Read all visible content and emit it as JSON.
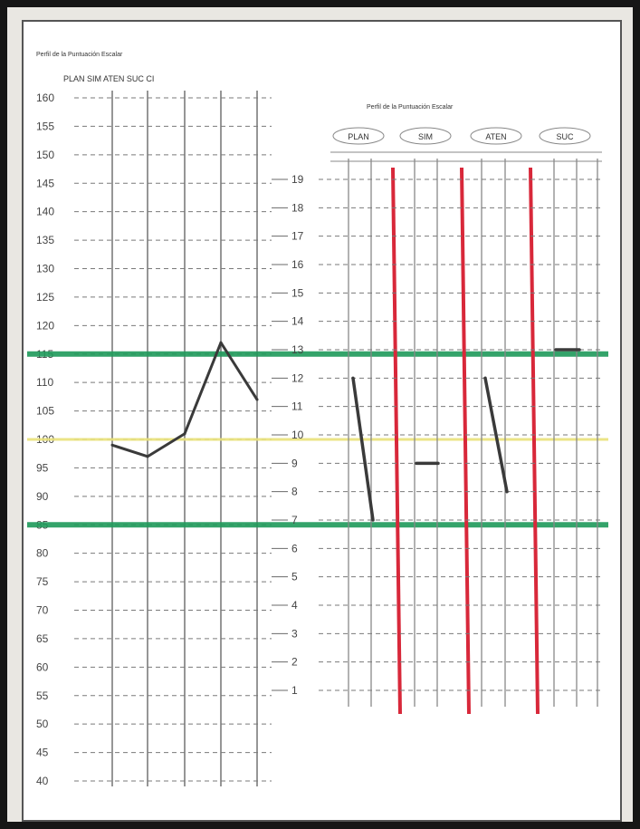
{
  "chart_data": [
    {
      "type": "line",
      "title": "Perfil de la Puntuación Escalar",
      "subtitle": "PLAN  SIM  ATEN  SUC  CI",
      "categories": [
        "PLAN",
        "SIM",
        "ATEN",
        "SUC",
        "CI"
      ],
      "ylim": [
        40,
        160
      ],
      "yticks": [
        160,
        155,
        150,
        145,
        140,
        135,
        130,
        125,
        120,
        115,
        110,
        105,
        100,
        95,
        90,
        85,
        80,
        75,
        70,
        65,
        60,
        55,
        50,
        45,
        40
      ],
      "series": [
        {
          "values": [
            99,
            97,
            101,
            117,
            107
          ]
        }
      ],
      "reference_lines": [
        {
          "y": 115,
          "color": "#1f9a5a"
        },
        {
          "y": 100,
          "color": "#e9e27a"
        },
        {
          "y": 85,
          "color": "#1f9a5a"
        }
      ],
      "grid": true
    },
    {
      "type": "line",
      "title": "Perfil de la Puntuación Escalar",
      "groups": [
        "PLAN",
        "SIM",
        "ATEN",
        "SUC"
      ],
      "subtests": [
        "",
        "",
        "",
        "",
        "",
        "",
        "",
        "",
        "",
        "",
        "",
        ""
      ],
      "ylim": [
        1,
        19
      ],
      "yticks": [
        19,
        18,
        17,
        16,
        15,
        14,
        13,
        12,
        11,
        10,
        9,
        8,
        7,
        6,
        5,
        4,
        3,
        2,
        1
      ],
      "segments": [
        {
          "group": "PLAN",
          "values": [
            12,
            7
          ]
        },
        {
          "group": "SIM",
          "values": [
            9,
            9
          ]
        },
        {
          "group": "ATEN",
          "values": [
            12,
            8
          ]
        },
        {
          "group": "SUC",
          "values": [
            13,
            13
          ]
        }
      ],
      "reference_lines": [
        {
          "y": 13,
          "color": "#1f9a5a"
        },
        {
          "y": 10,
          "color": "#e9e27a"
        },
        {
          "y": 7,
          "color": "#1f9a5a"
        }
      ],
      "separator_color": "#d8283a",
      "grid": true
    }
  ]
}
